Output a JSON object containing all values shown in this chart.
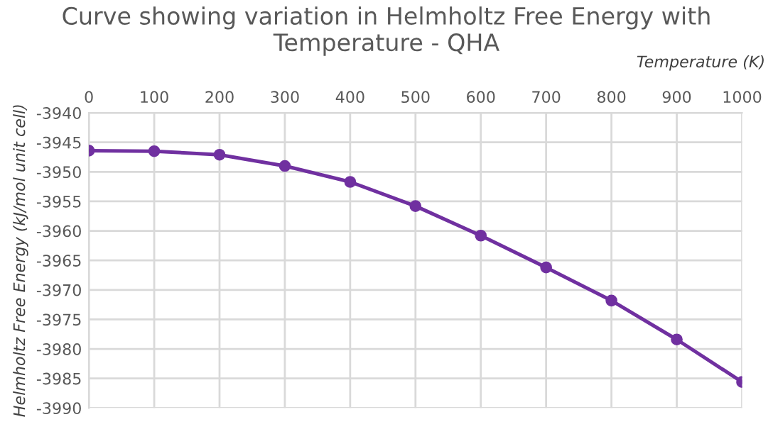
{
  "chart_data": {
    "type": "line",
    "title": "Curve showing variation in Helmholtz Free Energy with Temperature - QHA",
    "xlabel": "Temperature (K)",
    "ylabel": "Helmholtz Free Energy (kJ/mol unit cell)",
    "x": [
      0,
      100,
      200,
      300,
      400,
      500,
      600,
      700,
      800,
      900,
      1000
    ],
    "series": [
      {
        "color": "#7030a0",
        "values": [
          -3946.4,
          -3946.5,
          -3947.1,
          -3949.0,
          -3951.7,
          -3955.8,
          -3960.8,
          -3966.2,
          -3971.8,
          -3978.4,
          -3985.6
        ]
      }
    ],
    "xlim": [
      0,
      1000
    ],
    "xticks": [
      0,
      100,
      200,
      300,
      400,
      500,
      600,
      700,
      800,
      900,
      1000
    ],
    "ylim": [
      -3990,
      -3940
    ],
    "yticks": [
      -3990,
      -3985,
      -3980,
      -3975,
      -3970,
      -3965,
      -3960,
      -3955,
      -3950,
      -3945,
      -3940
    ],
    "grid": true,
    "marker": "circle",
    "line_style": "solid",
    "legend": false
  }
}
